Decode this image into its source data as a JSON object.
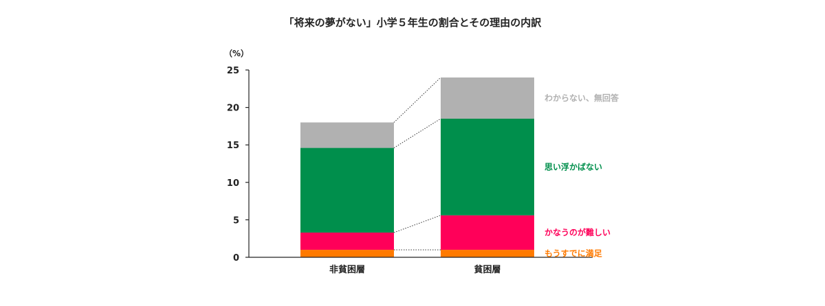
{
  "chart_data": {
    "type": "bar",
    "stacked": true,
    "title": "「将来の夢がない」小学５年生の割合とその理由の内訳",
    "ylabel": "（%）",
    "xlabel": "",
    "ylim": [
      0,
      25
    ],
    "yticks": [
      0,
      5,
      10,
      15,
      20,
      25
    ],
    "categories": [
      "非貧困層",
      "貧困層"
    ],
    "series": [
      {
        "name": "もうすでに満足",
        "color": "#ff7a00",
        "values": [
          1.0,
          1.0
        ]
      },
      {
        "name": "かなうのが難しい",
        "color": "#ff0059",
        "values": [
          2.3,
          4.6
        ]
      },
      {
        "name": "思い浮かばない",
        "color": "#008f4c",
        "values": [
          11.3,
          12.9
        ]
      },
      {
        "name": "わからない、無回答",
        "color": "#b1b1b1",
        "values": [
          3.4,
          5.5
        ]
      }
    ],
    "grid": false,
    "legend_placement": "right (labels beside the 貧困層 bar segments)"
  }
}
